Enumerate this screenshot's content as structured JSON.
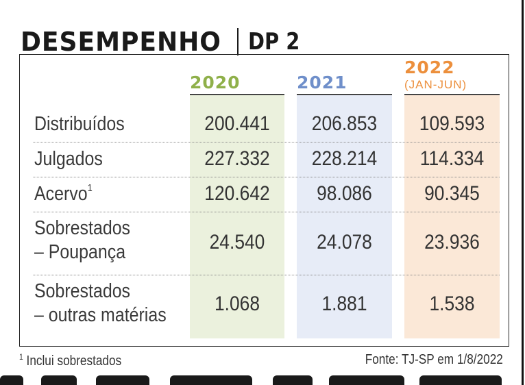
{
  "title": {
    "main": "DESEMPENHO",
    "sub": "DP 2"
  },
  "columns": [
    {
      "year": "2020",
      "period": "",
      "color": "#8fb04a"
    },
    {
      "year": "2021",
      "period": "",
      "color": "#6f8fca"
    },
    {
      "year": "2022",
      "period": "(JAN-JUN)",
      "color": "#ec8f3c"
    }
  ],
  "rows": [
    {
      "label_line1": "Distribuídos",
      "label_line2": "",
      "values": [
        "200.441",
        "206.853",
        "109.593"
      ]
    },
    {
      "label_line1": "Julgados",
      "label_line2": "",
      "values": [
        "227.332",
        "228.214",
        "114.334"
      ]
    },
    {
      "label_line1": "Acervo",
      "label_sup": "1",
      "label_line2": "",
      "values": [
        "120.642",
        "98.086",
        "90.345"
      ]
    },
    {
      "label_line1": "Sobrestados",
      "label_line2": "– Poupança",
      "values": [
        "24.540",
        "24.078",
        "23.936"
      ]
    },
    {
      "label_line1": "Sobrestados",
      "label_line2": "– outras matérias",
      "values": [
        "1.068",
        "1.881",
        "1.538"
      ]
    }
  ],
  "footnote": {
    "marker": "1",
    "text": "Inclui sobrestados"
  },
  "source": "Fonte: TJ-SP em 1/8/2022"
}
